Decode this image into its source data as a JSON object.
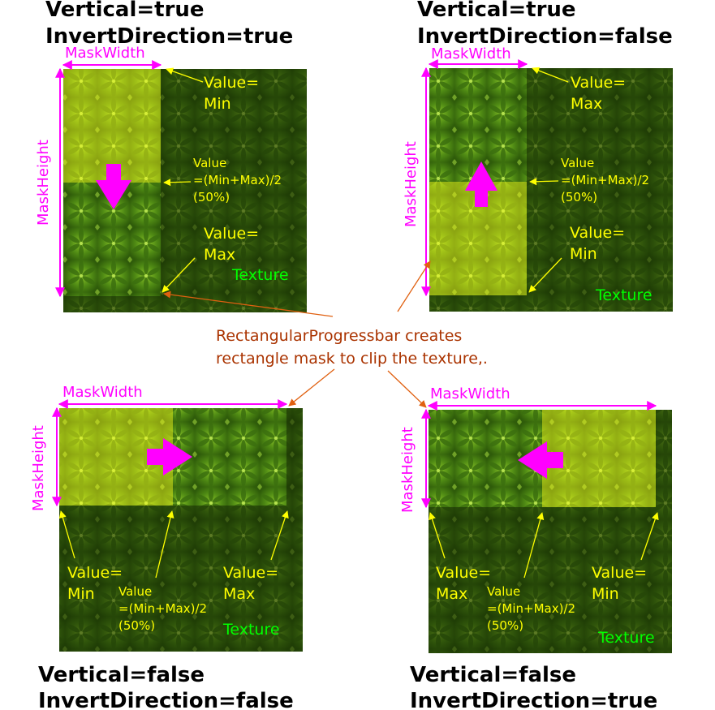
{
  "caption": {
    "line1": "RectangularProgressbar creates",
    "line2": "rectangle mask to clip the texture,."
  },
  "colors": {
    "heading": "#000000",
    "mask_label": "#ff00ff",
    "value_label": "#ffff00",
    "texture_label": "#00ff00",
    "caption": "#aa3300",
    "mask_highlight": "#ffff1a",
    "texture_dark": "#2d4d08",
    "callout_arrow": "#e06010"
  },
  "panels": {
    "top_left": {
      "vertical": "Vertical=true",
      "invert": "InvertDirection=true",
      "mask_width": "MaskWidth",
      "mask_height": "MaskHeight",
      "start": [
        "Value=",
        "Min"
      ],
      "mid": [
        "Value",
        "=(Min+Max)/2",
        "(50%)"
      ],
      "end": [
        "Value=",
        "Max"
      ],
      "texture": "Texture",
      "direction_icon": "arrow-down-icon",
      "progress": 0.5
    },
    "top_right": {
      "vertical": "Vertical=true",
      "invert": "InvertDirection=false",
      "mask_width": "MaskWidth",
      "mask_height": "MaskHeight",
      "start": [
        "Value=",
        "Max"
      ],
      "mid": [
        "Value",
        "=(Min+Max)/2",
        "(50%)"
      ],
      "end": [
        "Value=",
        "Min"
      ],
      "texture": "Texture",
      "direction_icon": "arrow-up-icon",
      "progress": 0.5
    },
    "bottom_left": {
      "vertical": "Vertical=false",
      "invert": "InvertDirection=false",
      "mask_width": "MaskWidth",
      "mask_height": "MaskHeight",
      "start": [
        "Value=",
        "Min"
      ],
      "mid": [
        "Value",
        "=(Min+Max)/2",
        "(50%)"
      ],
      "end": [
        "Value=",
        "Max"
      ],
      "texture": "Texture",
      "direction_icon": "arrow-right-icon",
      "progress": 0.5
    },
    "bottom_right": {
      "vertical": "Vertical=false",
      "invert": "InvertDirection=true",
      "mask_width": "MaskWidth",
      "mask_height": "MaskHeight",
      "start": [
        "Value=",
        "Max"
      ],
      "mid": [
        "Value",
        "=(Min+Max)/2",
        "(50%)"
      ],
      "end": [
        "Value=",
        "Min"
      ],
      "texture": "Texture",
      "direction_icon": "arrow-left-icon",
      "progress": 0.5
    }
  }
}
